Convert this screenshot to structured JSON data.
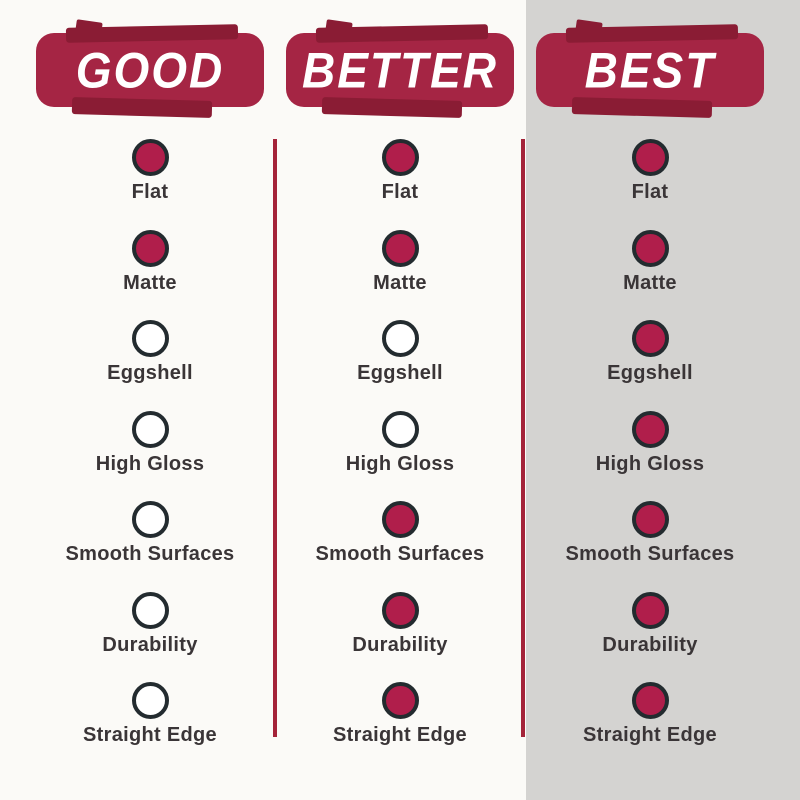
{
  "colors": {
    "background": "#FBFAF7",
    "highlight_panel": "#D4D3D1",
    "banner": "#A52544",
    "banner_brush": "#8A1C34",
    "banner_text": "#FFFFFF",
    "dot_fill": "#B01E4B",
    "dot_outline": "#232B2F",
    "dot_empty": "#FFFFFF",
    "divider": "#A42339",
    "label_text": "#3A3537"
  },
  "chart_data": {
    "type": "table",
    "columns": [
      "GOOD",
      "BETTER",
      "BEST"
    ],
    "rows": [
      "Flat",
      "Matte",
      "Eggshell",
      "High Gloss",
      "Smooth Surfaces",
      "Durability",
      "Straight Edge"
    ],
    "values": [
      [
        1,
        1,
        1
      ],
      [
        1,
        1,
        1
      ],
      [
        0,
        0,
        1
      ],
      [
        0,
        0,
        1
      ],
      [
        0,
        1,
        1
      ],
      [
        0,
        1,
        1
      ],
      [
        0,
        1,
        1
      ]
    ],
    "value_encoding": "1 = filled dot (feature applies), 0 = empty dot",
    "highlighted_column": "BEST",
    "legend_position": "none",
    "grid": false
  }
}
